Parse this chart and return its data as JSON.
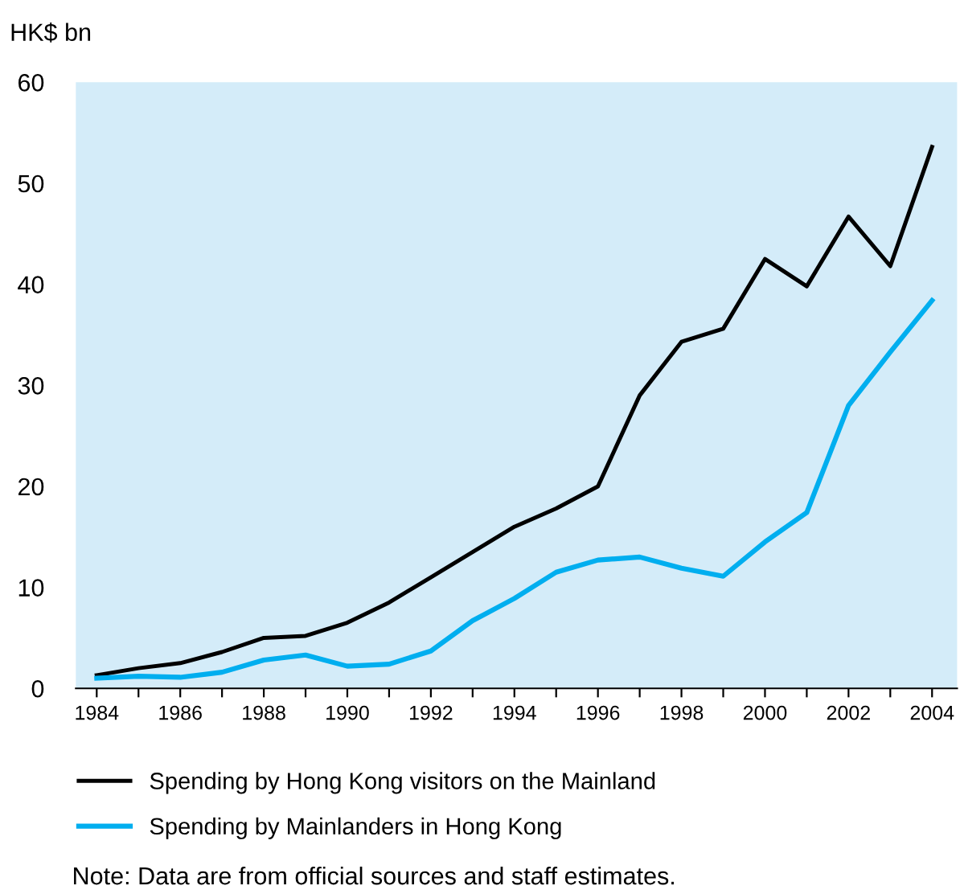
{
  "chart_data": {
    "type": "line",
    "ylabel": "HK$ bn",
    "x": [
      1984,
      1985,
      1986,
      1987,
      1988,
      1989,
      1990,
      1991,
      1992,
      1993,
      1994,
      1995,
      1996,
      1997,
      1998,
      1999,
      2000,
      2001,
      2002,
      2003,
      2004
    ],
    "series": [
      {
        "name": "Spending by Hong Kong visitors on the Mainland",
        "color": "#000000",
        "values": [
          1.3,
          2.0,
          2.5,
          3.6,
          5.0,
          5.2,
          6.5,
          8.5,
          11.0,
          13.5,
          16.0,
          17.8,
          20.0,
          29.0,
          34.3,
          35.6,
          42.5,
          39.8,
          46.7,
          41.8,
          53.6
        ]
      },
      {
        "name": "Spending by Mainlanders in Hong Kong",
        "color": "#00aeef",
        "values": [
          1.0,
          1.2,
          1.1,
          1.6,
          2.8,
          3.3,
          2.2,
          2.4,
          3.7,
          6.7,
          8.9,
          11.5,
          12.7,
          13.0,
          11.9,
          11.1,
          14.5,
          17.4,
          28.0,
          33.3,
          38.4
        ]
      }
    ],
    "xlim": [
      1983.5,
      2004.6
    ],
    "ylim": [
      0,
      60
    ],
    "xticks": [
      1984,
      {
        "value": 1985,
        "label": null
      },
      1986,
      {
        "value": 1987,
        "label": null
      },
      1988,
      {
        "value": 1989,
        "label": null
      },
      1990,
      {
        "value": 1991,
        "label": null
      },
      1992,
      {
        "value": 1993,
        "label": null
      },
      1994,
      {
        "value": 1995,
        "label": null
      },
      1996,
      {
        "value": 1997,
        "label": null
      },
      1998,
      {
        "value": 1999,
        "label": null
      },
      2000,
      {
        "value": 2001,
        "label": null
      },
      2002,
      {
        "value": 2003,
        "label": null
      },
      2004
    ],
    "yticks": [
      0,
      10,
      20,
      30,
      40,
      50,
      60
    ],
    "grid": false,
    "legend": "bottom",
    "line_style": "solid",
    "marker": "none",
    "annotations": [
      "Note: Data are from official sources and staff estimates."
    ]
  }
}
